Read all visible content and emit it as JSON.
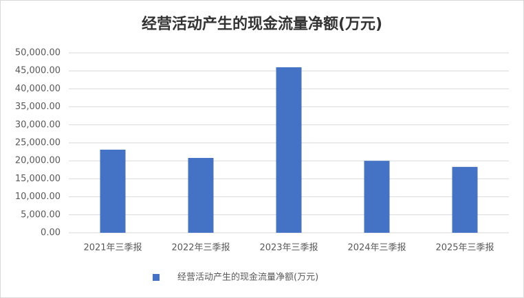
{
  "chart_data": {
    "type": "bar",
    "title": "经营活动产生的现金流量净额(万元)",
    "categories": [
      "2021年三季报",
      "2022年三季报",
      "2023年三季报",
      "2024年三季报",
      "2025年三季报"
    ],
    "series": [
      {
        "name": "经营活动产生的现金流量净额(万元)",
        "color": "#4472c4",
        "values": [
          23100,
          20800,
          46000,
          20000,
          18300
        ]
      }
    ],
    "ylim": [
      0,
      50000
    ],
    "yticks": [
      {
        "value": 0,
        "label": "0.00"
      },
      {
        "value": 5000,
        "label": "5,000.00"
      },
      {
        "value": 10000,
        "label": "10,000.00"
      },
      {
        "value": 15000,
        "label": "15,000.00"
      },
      {
        "value": 20000,
        "label": "20,000.00"
      },
      {
        "value": 25000,
        "label": "25,000.00"
      },
      {
        "value": 30000,
        "label": "30,000.00"
      },
      {
        "value": 35000,
        "label": "35,000.00"
      },
      {
        "value": 40000,
        "label": "40,000.00"
      },
      {
        "value": 45000,
        "label": "45,000.00"
      },
      {
        "value": 50000,
        "label": "50,000.00"
      }
    ],
    "grid": true,
    "legend": "bottom"
  }
}
